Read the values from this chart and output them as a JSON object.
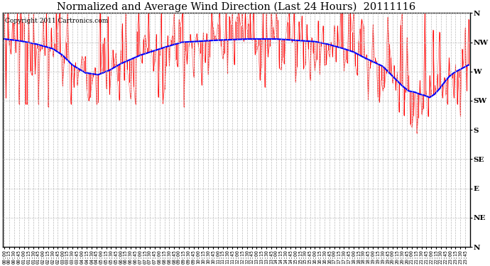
{
  "title": "Normalized and Average Wind Direction (Last 24 Hours)  20111116",
  "copyright": "Copyright 2011 Cartronics.com",
  "ytick_labels": [
    "N",
    "NW",
    "W",
    "SW",
    "S",
    "SE",
    "E",
    "NE",
    "N"
  ],
  "ytick_values": [
    360,
    315,
    270,
    225,
    180,
    135,
    90,
    45,
    0
  ],
  "ylim": [
    0,
    360
  ],
  "background_color": "#ffffff",
  "plot_bg_color": "#ffffff",
  "grid_color": "#bbbbbb",
  "red_color": "#ff0000",
  "blue_color": "#0000ff",
  "title_fontsize": 10.5,
  "copyright_fontsize": 6.5,
  "n_points": 288
}
